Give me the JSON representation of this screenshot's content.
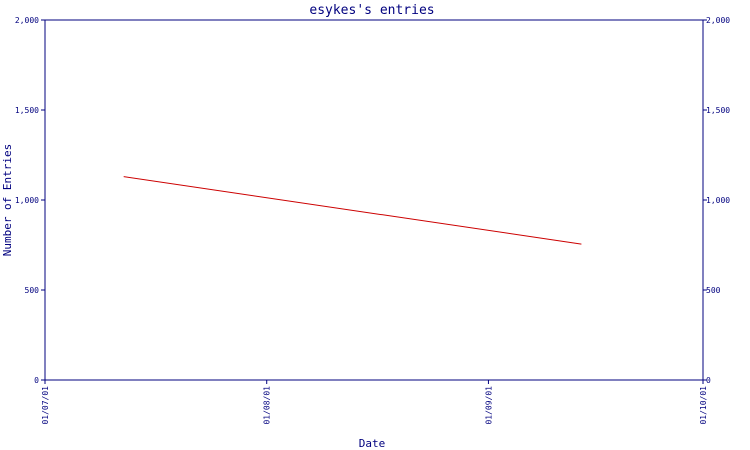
{
  "chart_data": {
    "type": "line",
    "title": "esykes's entries",
    "xlabel": "Date",
    "ylabel": "Number of Entries",
    "x_ticks": [
      "01/07/01",
      "01/08/01",
      "01/09/01",
      "01/10/01"
    ],
    "y_ticks": [
      "0",
      "500",
      "1,000",
      "1,500",
      "2,000"
    ],
    "y_ticks_right": [
      "0",
      "500",
      "1,000",
      "1,500",
      "2,000"
    ],
    "ylim": [
      0,
      2000
    ],
    "xlim": [
      "2001-07-01",
      "2001-10-01"
    ],
    "grid": false,
    "series": [
      {
        "points": [
          {
            "x": "2001-07-12",
            "y": 1130
          },
          {
            "x": "2001-09-14",
            "y": 755
          }
        ],
        "color": "#cc0000"
      }
    ]
  }
}
